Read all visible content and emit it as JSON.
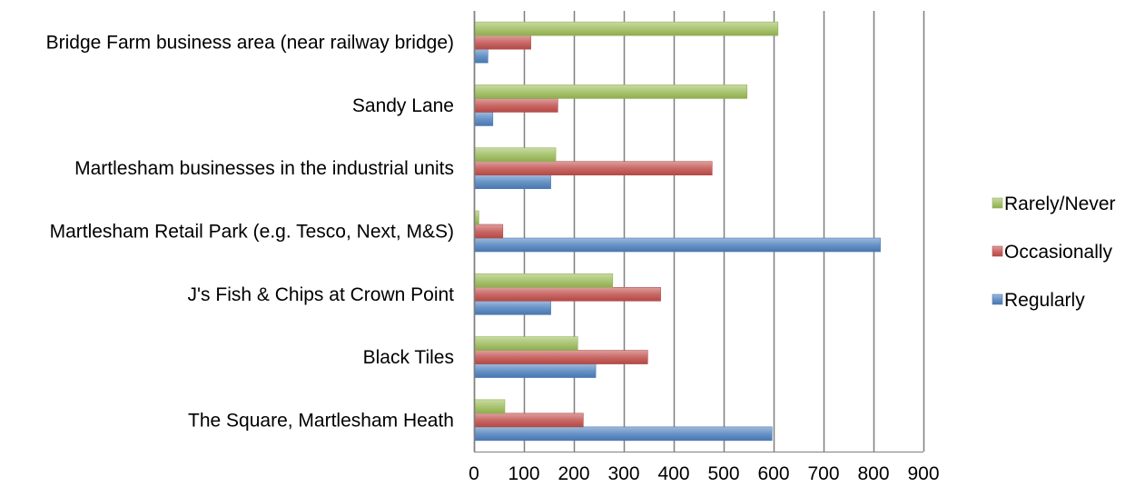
{
  "chart_data": {
    "type": "bar",
    "orientation": "horizontal",
    "categories": [
      "The Square, Martlesham Heath",
      "Black Tiles",
      "J's Fish & Chips at Crown Point",
      "Martlesham Retail Park (e.g. Tesco, Next, M&S)",
      "Martlesham businesses in the industrial units",
      "Sandy Lane",
      "Bridge Farm business area (near railway bridge)"
    ],
    "series": [
      {
        "name": "Regularly",
        "color": "#4f81bd",
        "values": [
          595,
          242,
          152,
          812,
          152,
          36,
          26
        ]
      },
      {
        "name": "Occasionally",
        "color": "#c0504d",
        "values": [
          217,
          346,
          372,
          56,
          475,
          166,
          112
        ]
      },
      {
        "name": "Rarely/Never",
        "color": "#9bbb59",
        "values": [
          60,
          206,
          276,
          8,
          162,
          545,
          607
        ]
      }
    ],
    "xlim": [
      0,
      900
    ],
    "xticks": [
      "0",
      "100",
      "200",
      "300",
      "400",
      "500",
      "600",
      "700",
      "800",
      "900"
    ],
    "grid": true,
    "legend_position": "right",
    "legend_order": [
      "Rarely/Never",
      "Occasionally",
      "Regularly"
    ],
    "title": "",
    "xlabel": "",
    "ylabel": ""
  }
}
